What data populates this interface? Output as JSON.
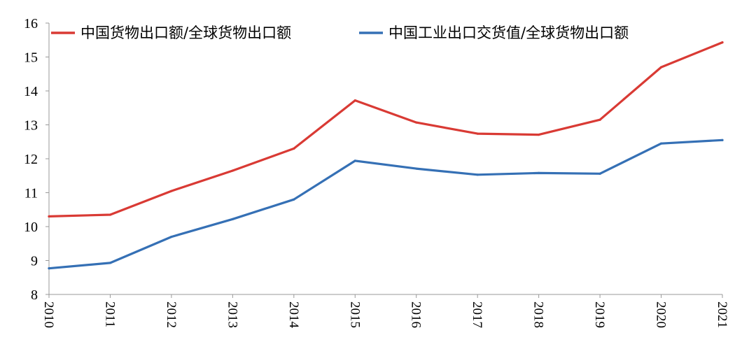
{
  "chart_data": {
    "type": "line",
    "x": [
      "2010",
      "2011",
      "2012",
      "2013",
      "2014",
      "2015",
      "2016",
      "2017",
      "2018",
      "2019",
      "2020",
      "2021"
    ],
    "ylim": [
      8,
      16
    ],
    "yticks": [
      "8",
      "9",
      "10",
      "11",
      "12",
      "13",
      "14",
      "15",
      "16"
    ],
    "grid": false,
    "legend_position": "top",
    "series": [
      {
        "name": "中国货物出口额/全球货物出口额",
        "color": "#d93a34",
        "values": [
          10.3,
          10.35,
          11.05,
          11.65,
          12.3,
          13.72,
          13.07,
          12.74,
          12.71,
          13.15,
          14.7,
          15.43
        ]
      },
      {
        "name": "中国工业出口交货值/全球货物出口额",
        "color": "#3570b5",
        "values": [
          8.77,
          8.93,
          9.7,
          10.22,
          10.8,
          11.94,
          11.71,
          11.53,
          11.58,
          11.56,
          12.45,
          12.55
        ]
      }
    ]
  }
}
